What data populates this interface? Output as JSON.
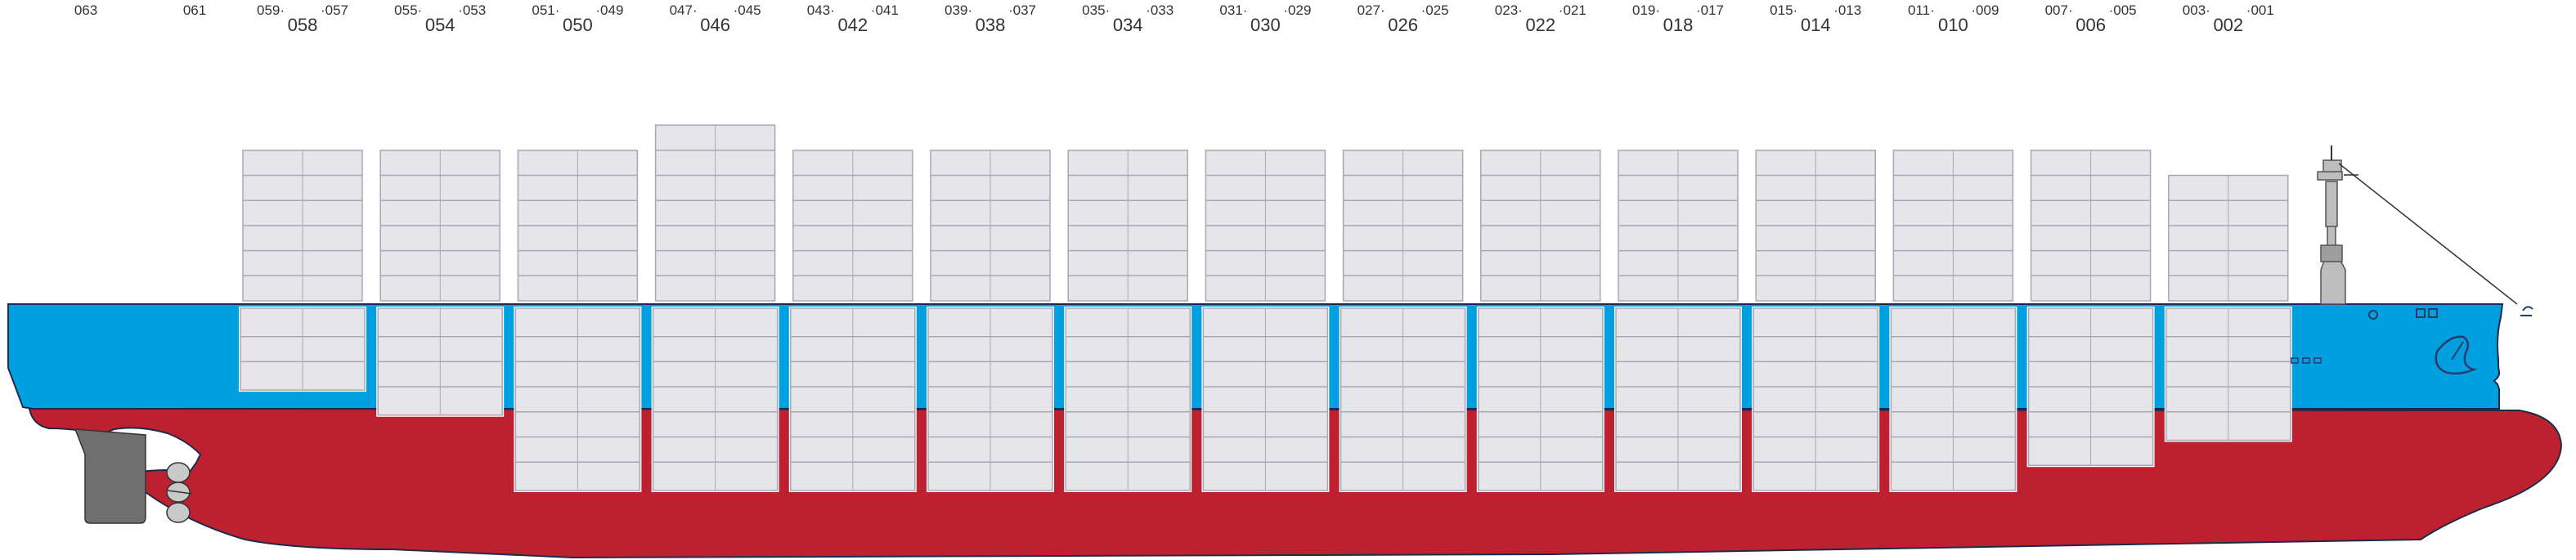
{
  "colors": {
    "hull_top": "#00a0e0",
    "hull_bottom": "#bd2130",
    "container_fill": "#e6e6ea",
    "container_stroke": "#a8a8b4",
    "superstructure": "#bdbdbd",
    "rudder": "#6f6f6f"
  },
  "icons": [
    "propeller-icon",
    "rudder-icon",
    "mast-icon",
    "anchor-icon",
    "bulbous-bow-icon"
  ],
  "labels": {
    "stern": {
      "top": "063",
      "mid": "061"
    },
    "bays": [
      {
        "main": "058",
        "left": "059",
        "right": "057"
      },
      {
        "main": "054",
        "left": "055",
        "right": "053"
      },
      {
        "main": "050",
        "left": "051",
        "right": "049"
      },
      {
        "main": "046",
        "left": "047",
        "right": "045"
      },
      {
        "main": "042",
        "left": "043",
        "right": "041"
      },
      {
        "main": "038",
        "left": "039",
        "right": "037"
      },
      {
        "main": "034",
        "left": "035",
        "right": "033"
      },
      {
        "main": "030",
        "left": "031",
        "right": "029"
      },
      {
        "main": "026",
        "left": "027",
        "right": "025"
      },
      {
        "main": "022",
        "left": "023",
        "right": "021"
      },
      {
        "main": "018",
        "left": "019",
        "right": "017"
      },
      {
        "main": "014",
        "left": "015",
        "right": "013"
      },
      {
        "main": "010",
        "left": "011",
        "right": "009"
      },
      {
        "main": "006",
        "left": "007",
        "right": "005"
      },
      {
        "main": "002",
        "left": "003",
        "right": "001"
      }
    ]
  },
  "deck_tiers": [
    6,
    6,
    6,
    7,
    6,
    6,
    6,
    6,
    6,
    6,
    6,
    6,
    6,
    6,
    5
  ],
  "hold_tiers": [
    3,
    4,
    7,
    7,
    7,
    7,
    7,
    7,
    7,
    7,
    7,
    7,
    7,
    6,
    5
  ]
}
